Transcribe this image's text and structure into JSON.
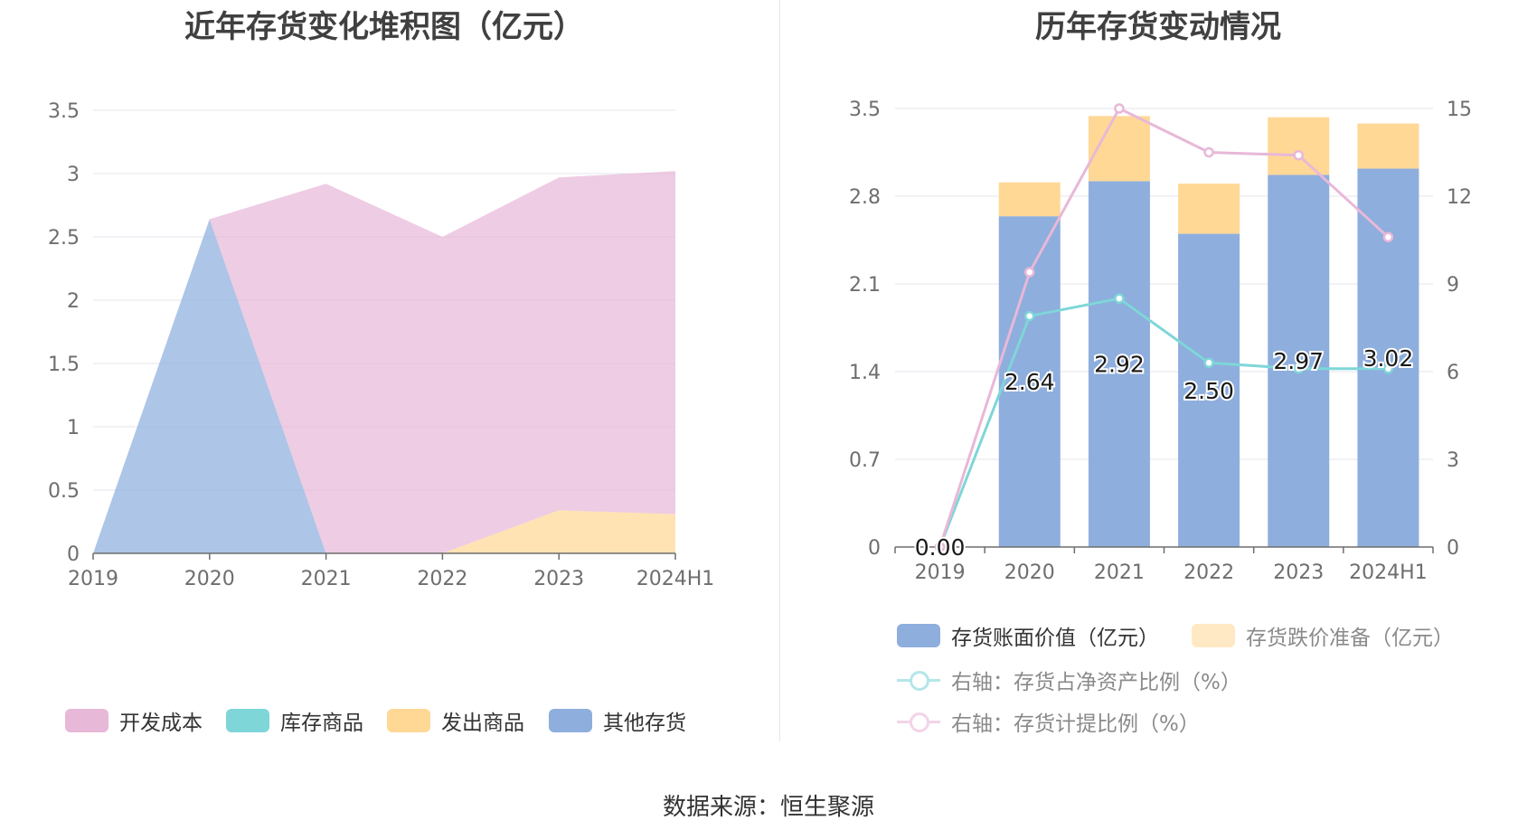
{
  "source": "数据来源：恒生聚源",
  "chart_data": [
    {
      "type": "area",
      "stacked": true,
      "title": "近年存货变化堆积图（亿元）",
      "categories": [
        "2019",
        "2020",
        "2021",
        "2022",
        "2023",
        "2024H1"
      ],
      "yticks": [
        "0",
        "0.5",
        "1",
        "1.5",
        "2",
        "2.5",
        "3",
        "3.5"
      ],
      "ylim": [
        0,
        3.5
      ],
      "grid": true,
      "legend_position": "bottom",
      "series": [
        {
          "name": "其他存货",
          "color": "#8eaedd",
          "values": [
            0,
            2.64,
            0,
            0,
            0,
            0
          ]
        },
        {
          "name": "发出商品",
          "color": "#ffd896",
          "values": [
            0,
            0,
            0,
            0,
            0.34,
            0.31
          ]
        },
        {
          "name": "库存商品",
          "color": "#7ed6d8",
          "values": [
            0,
            0,
            0,
            0,
            0,
            0
          ]
        },
        {
          "name": "开发成本",
          "color": "#e8b8d8",
          "values": [
            0,
            0,
            2.92,
            2.5,
            2.63,
            2.71
          ]
        }
      ],
      "legend": [
        {
          "name": "开发成本",
          "color": "#e8b8d8"
        },
        {
          "name": "库存商品",
          "color": "#7ed6d8"
        },
        {
          "name": "发出商品",
          "color": "#ffd896"
        },
        {
          "name": "其他存货",
          "color": "#8eaedd"
        }
      ]
    },
    {
      "type": "bar",
      "stacked": true,
      "title": "历年存货变动情况",
      "categories": [
        "2019",
        "2020",
        "2021",
        "2022",
        "2023",
        "2024H1"
      ],
      "y_left_ticks": [
        "0",
        "0.7",
        "1.4",
        "2.1",
        "2.8",
        "3.5"
      ],
      "y_left_lim": [
        0,
        3.5
      ],
      "y_right_ticks": [
        "0",
        "3",
        "6",
        "9",
        "12",
        "15"
      ],
      "y_right_lim": [
        0,
        15
      ],
      "grid": true,
      "legend_position": "bottom",
      "bar_series": [
        {
          "name": "存货账面价值（亿元）",
          "color": "#8eaedd",
          "values": [
            0.0,
            2.64,
            2.92,
            2.5,
            2.97,
            3.02
          ],
          "labels": [
            "0.00",
            "2.64",
            "2.92",
            "2.50",
            "2.97",
            "3.02"
          ]
        },
        {
          "name": "存货跌价准备（亿元）",
          "color": "#ffd896",
          "values": [
            0,
            0.27,
            0.52,
            0.4,
            0.46,
            0.36
          ]
        }
      ],
      "line_series": [
        {
          "name": "右轴：存货占净资产比例（%）",
          "color": "#7ed6d8",
          "axis": "right",
          "values": [
            0,
            7.9,
            8.5,
            6.3,
            6.1,
            6.1
          ]
        },
        {
          "name": "右轴：存货计提比例（%）",
          "color": "#e8b8d8",
          "axis": "right",
          "values": [
            0,
            9.4,
            15.0,
            13.5,
            13.4,
            10.6
          ]
        }
      ]
    }
  ]
}
